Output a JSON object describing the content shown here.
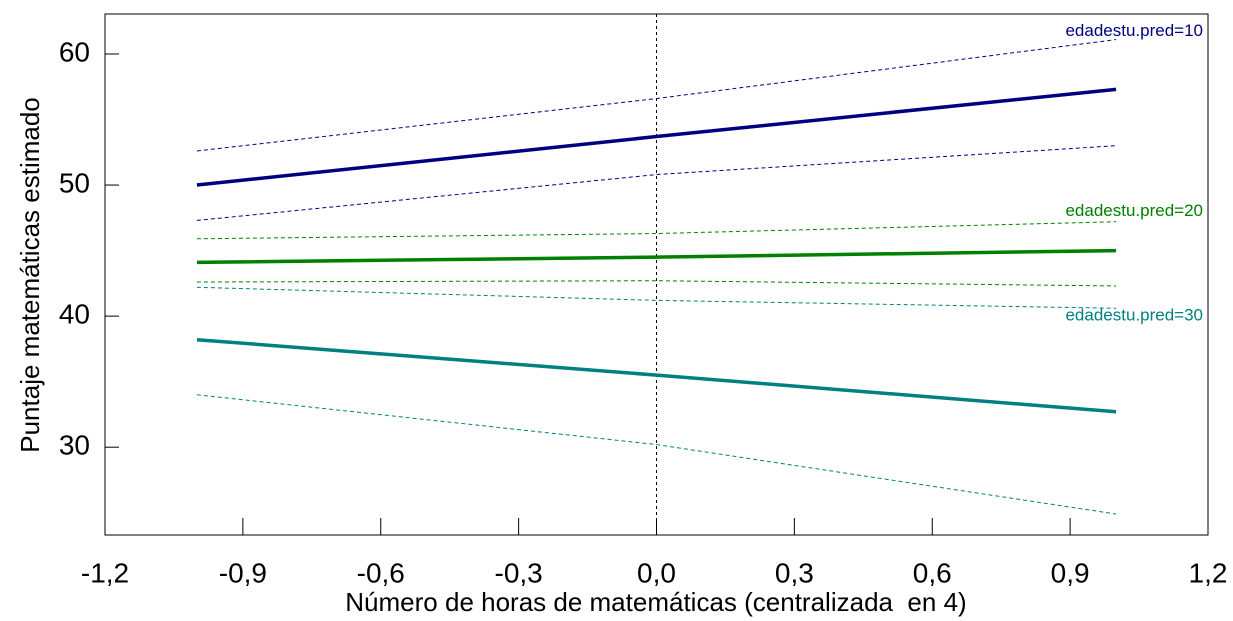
{
  "chart_data": {
    "type": "line",
    "xlabel": "Número de horas de matemáticas (centralizada  en 4)",
    "ylabel": "Puntaje matemáticas estimado",
    "x": [
      -1,
      0,
      1
    ],
    "series": [
      {
        "name": "edadestu.pred=10",
        "color": "#000080",
        "values": [
          50.0,
          53.7,
          57.3
        ],
        "lower": [
          47.3,
          50.8,
          53.0
        ],
        "upper": [
          52.6,
          56.6,
          61.1
        ]
      },
      {
        "name": "edadestu.pred=20",
        "color": "#008000",
        "values": [
          44.1,
          44.5,
          45.0
        ],
        "lower": [
          42.6,
          42.7,
          42.3
        ],
        "upper": [
          45.9,
          46.3,
          47.2
        ]
      },
      {
        "name": "edadestu.pred=30",
        "color": "#008080",
        "values": [
          38.2,
          35.5,
          32.7
        ],
        "lower": [
          34.0,
          30.2,
          24.9
        ],
        "upper": [
          42.2,
          41.2,
          40.6
        ]
      }
    ],
    "xlim": [
      -1.2,
      1.2
    ],
    "xticks": [
      {
        "value": -1.2,
        "label": "-1,2"
      },
      {
        "value": -0.9,
        "label": "-0,9"
      },
      {
        "value": -0.6,
        "label": "-0,6"
      },
      {
        "value": -0.3,
        "label": "-0,3"
      },
      {
        "value": 0,
        "label": "0,0"
      },
      {
        "value": 0.3,
        "label": "0,3"
      },
      {
        "value": 0.6,
        "label": "0,6"
      },
      {
        "value": 0.9,
        "label": "0,9"
      },
      {
        "value": 1.2,
        "label": "1,2"
      }
    ],
    "ylim": [
      23.3,
      63.05
    ],
    "yticks": [
      30,
      40,
      50,
      60
    ],
    "vline": 0
  }
}
